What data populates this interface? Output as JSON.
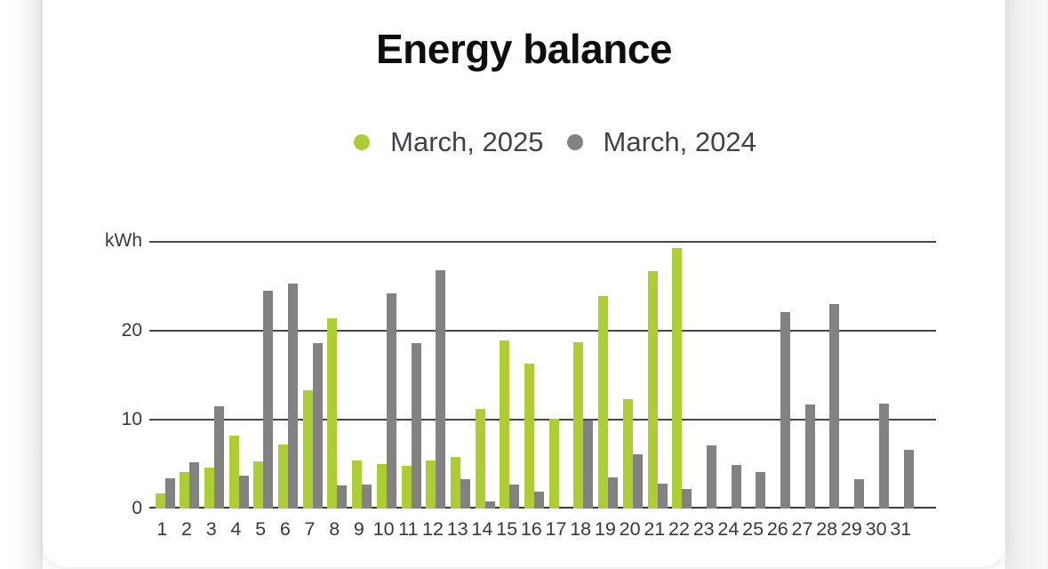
{
  "title": "Energy balance",
  "y_axis": {
    "unit": "kWh",
    "tick_labels": [
      "20",
      "10",
      "0"
    ]
  },
  "chart_data": {
    "type": "bar",
    "title": "Energy balance",
    "xlabel": "",
    "ylabel": "kWh",
    "ylim": [
      0,
      30
    ],
    "yticks": [
      0,
      10,
      20,
      30
    ],
    "grid": true,
    "legend_position": "top",
    "categories": [
      1,
      2,
      3,
      4,
      5,
      6,
      7,
      8,
      9,
      10,
      11,
      12,
      13,
      14,
      15,
      16,
      17,
      18,
      19,
      20,
      21,
      22,
      23,
      24,
      25,
      26,
      27,
      28,
      29,
      30,
      31
    ],
    "series": [
      {
        "name": "March, 2025",
        "color": "#aecd35",
        "values": [
          1.7,
          4.1,
          4.6,
          8.2,
          5.3,
          7.2,
          13.3,
          21.4,
          5.4,
          5.0,
          4.8,
          5.4,
          5.8,
          11.2,
          18.9,
          16.3,
          10.1,
          18.7,
          23.9,
          12.3,
          26.7,
          29.3,
          0,
          0,
          0,
          0,
          0,
          0,
          0,
          0,
          0
        ]
      },
      {
        "name": "March, 2024",
        "color": "#828282",
        "values": [
          3.4,
          5.2,
          11.5,
          3.7,
          24.5,
          25.3,
          18.6,
          2.6,
          2.7,
          24.2,
          18.6,
          26.8,
          3.3,
          0.8,
          2.7,
          1.9,
          0,
          9.9,
          3.5,
          6.1,
          2.8,
          2.2,
          7.1,
          4.9,
          4.1,
          22.1,
          11.7,
          23.0,
          3.3,
          11.8,
          6.6
        ]
      }
    ]
  }
}
